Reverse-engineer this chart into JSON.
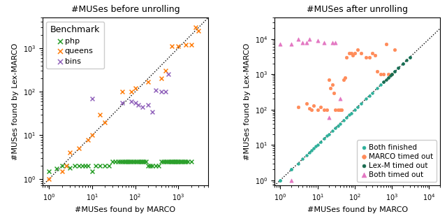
{
  "title1": "#MUSes before unrolling",
  "title2": "#MUSes after unrolling",
  "xlabel": "#MUSes found by MARCO",
  "ylabel": "#MUSes found by Lex-MARCO",
  "php_color": "#2ca02c",
  "queens_color": "#ff7f0e",
  "bins_color": "#9467bd",
  "both_finished_color": "#2db09a",
  "marco_timeout_color": "#ff8c5a",
  "lex_timeout_color": "#1a6b50",
  "both_timeout_color": "#e377c2",
  "php_x": [
    1,
    1.5,
    2,
    2.5,
    3,
    4,
    5,
    6,
    7,
    8,
    10,
    12,
    15,
    20,
    25,
    30,
    35,
    40,
    45,
    50,
    55,
    60,
    65,
    70,
    75,
    80,
    90,
    100,
    110,
    120,
    130,
    140,
    150,
    160,
    180,
    200,
    220,
    250,
    300,
    350,
    400,
    450,
    500,
    550,
    600,
    650,
    700,
    750,
    800,
    850,
    900,
    950,
    1000,
    1100,
    1200,
    1300,
    1400,
    1500,
    1700,
    2000
  ],
  "php_y": [
    1.5,
    1.7,
    2,
    2,
    1.8,
    2,
    2,
    2,
    2,
    2,
    1.5,
    2,
    2,
    2,
    2,
    2.5,
    2.5,
    2.5,
    2.5,
    2.5,
    2.5,
    2.5,
    2.5,
    2.5,
    2.5,
    2.5,
    2.5,
    2.5,
    2.5,
    2.5,
    2.5,
    2.5,
    2.5,
    2.5,
    2.5,
    2,
    2,
    2,
    2,
    2,
    2.5,
    2.5,
    2.5,
    2.5,
    2.5,
    2.5,
    2.5,
    2.5,
    2.5,
    2.5,
    2.5,
    2.5,
    2.5,
    2.5,
    2.5,
    2.5,
    2.5,
    2.5,
    2.5,
    2.5
  ],
  "queens_x": [
    1,
    2,
    2.5,
    3,
    5,
    8,
    10,
    15,
    20,
    50,
    80,
    100,
    200,
    400,
    500,
    700,
    1000,
    1500,
    2000,
    2500,
    3000
  ],
  "queens_y": [
    1,
    1.5,
    2,
    4,
    5,
    8,
    10,
    30,
    20,
    100,
    100,
    120,
    170,
    200,
    300,
    1100,
    1100,
    1200,
    1200,
    3000,
    2500
  ],
  "bins_x": [
    10,
    50,
    80,
    100,
    120,
    150,
    200,
    250,
    300,
    400,
    500,
    600
  ],
  "bins_y": [
    70,
    55,
    60,
    55,
    50,
    45,
    50,
    35,
    110,
    100,
    100,
    250
  ],
  "bf_x": [
    1,
    1,
    2,
    2,
    3,
    4,
    5,
    6,
    7,
    8,
    9,
    10,
    12,
    15,
    18,
    20,
    25,
    30,
    35,
    40,
    50,
    60,
    70,
    80,
    100,
    120,
    150,
    200,
    250,
    300,
    400,
    500,
    600,
    800,
    1000,
    1200,
    1500,
    2000,
    3000
  ],
  "bf_y": [
    1,
    1,
    2,
    2,
    3,
    4,
    5,
    6,
    7,
    8,
    9,
    10,
    12,
    15,
    18,
    20,
    25,
    30,
    35,
    40,
    50,
    60,
    70,
    80,
    100,
    120,
    150,
    200,
    250,
    300,
    400,
    500,
    600,
    800,
    1000,
    1200,
    1500,
    2000,
    3000
  ],
  "mt_x": [
    3,
    5,
    6,
    7,
    8,
    10,
    12,
    15,
    18,
    20,
    22,
    25,
    28,
    30,
    35,
    40,
    45,
    50,
    55,
    60,
    70,
    80,
    90,
    100,
    120,
    150,
    200,
    250,
    300,
    350,
    400,
    500,
    600,
    700,
    800,
    1000,
    1200
  ],
  "mt_y": [
    120,
    150,
    110,
    100,
    130,
    100,
    120,
    100,
    100,
    700,
    400,
    500,
    300,
    100,
    100,
    100,
    100,
    700,
    800,
    3000,
    4000,
    4000,
    3500,
    4000,
    5000,
    4000,
    3000,
    3000,
    4000,
    3500,
    1200,
    1000,
    1000,
    7000,
    1000,
    1000,
    5000
  ],
  "lt_x": [
    600,
    700,
    800,
    900,
    1000,
    1200,
    1500,
    2000,
    2500,
    3000
  ],
  "lt_y": [
    600,
    700,
    800,
    900,
    1000,
    1200,
    1500,
    2000,
    2500,
    3000
  ],
  "bt_x": [
    2,
    3,
    4,
    5,
    6,
    10,
    15,
    20,
    25,
    30,
    40,
    1,
    2
  ],
  "bt_y": [
    7000,
    10000,
    8000,
    8000,
    10000,
    9000,
    8000,
    60,
    8000,
    8000,
    200,
    7000,
    1
  ]
}
